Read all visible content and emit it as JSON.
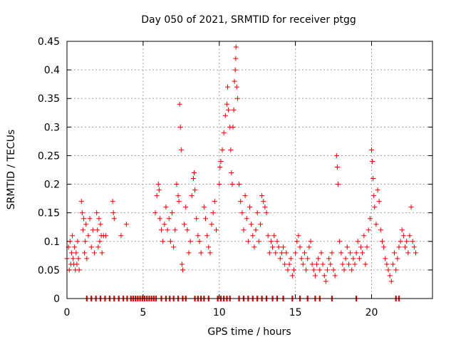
{
  "chart_data": {
    "type": "scatter",
    "title": "Day 050 of 2021, SRMTID for receiver ptgg",
    "xlabel": "GPS time / hours",
    "ylabel": "SRMTID / TECUs",
    "xlim": [
      0,
      24
    ],
    "ylim": [
      0,
      0.45
    ],
    "x_ticks": [
      0,
      5,
      10,
      15,
      20
    ],
    "x_tick_labels": [
      "0",
      "5",
      "10",
      "15",
      "20"
    ],
    "y_ticks": [
      0,
      0.05,
      0.1,
      0.15,
      0.2,
      0.25,
      0.3,
      0.35,
      0.4,
      0.45
    ],
    "y_tick_labels": [
      "0",
      "0.05",
      "0.1",
      "0.15",
      "0.2",
      "0.25",
      "0.3",
      "0.35",
      "0.4",
      "0.45"
    ],
    "grid": true,
    "marker": "+",
    "series_color": "#e00000",
    "series": [
      {
        "name": "SRMTID",
        "points": [
          [
            0.0,
            0.07
          ],
          [
            0.1,
            0.09
          ],
          [
            0.15,
            0.05
          ],
          [
            0.2,
            0.1
          ],
          [
            0.25,
            0.06
          ],
          [
            0.3,
            0.08
          ],
          [
            0.35,
            0.11
          ],
          [
            0.4,
            0.07
          ],
          [
            0.45,
            0.06
          ],
          [
            0.5,
            0.09
          ],
          [
            0.55,
            0.05
          ],
          [
            0.6,
            0.08
          ],
          [
            0.65,
            0.06
          ],
          [
            0.7,
            0.1
          ],
          [
            0.75,
            0.07
          ],
          [
            0.8,
            0.05
          ],
          [
            0.95,
            0.17
          ],
          [
            1.0,
            0.15
          ],
          [
            1.05,
            0.12
          ],
          [
            1.1,
            0.14
          ],
          [
            1.15,
            0.08
          ],
          [
            1.2,
            0.1
          ],
          [
            1.25,
            0.13
          ],
          [
            1.3,
            0.07
          ],
          [
            1.4,
            0.11
          ],
          [
            1.5,
            0.14
          ],
          [
            1.6,
            0.09
          ],
          [
            1.7,
            0.12
          ],
          [
            1.8,
            0.08
          ],
          [
            1.95,
            0.15
          ],
          [
            2.0,
            0.12
          ],
          [
            2.05,
            0.09
          ],
          [
            2.1,
            0.14
          ],
          [
            2.15,
            0.1
          ],
          [
            2.2,
            0.13
          ],
          [
            2.25,
            0.11
          ],
          [
            2.3,
            0.08
          ],
          [
            2.4,
            0.11
          ],
          [
            2.55,
            0.11
          ],
          [
            3.0,
            0.17
          ],
          [
            3.05,
            0.15
          ],
          [
            3.1,
            0.14
          ],
          [
            3.55,
            0.11
          ],
          [
            3.9,
            0.13
          ],
          [
            5.8,
            0.15
          ],
          [
            5.9,
            0.18
          ],
          [
            6.0,
            0.2
          ],
          [
            6.05,
            0.19
          ],
          [
            6.1,
            0.14
          ],
          [
            6.2,
            0.12
          ],
          [
            6.3,
            0.1
          ],
          [
            6.4,
            0.13
          ],
          [
            6.5,
            0.16
          ],
          [
            6.6,
            0.12
          ],
          [
            6.7,
            0.14
          ],
          [
            6.8,
            0.1
          ],
          [
            6.9,
            0.15
          ],
          [
            7.0,
            0.09
          ],
          [
            7.1,
            0.12
          ],
          [
            7.2,
            0.2
          ],
          [
            7.3,
            0.18
          ],
          [
            7.35,
            0.17
          ],
          [
            7.4,
            0.34
          ],
          [
            7.45,
            0.3
          ],
          [
            7.5,
            0.26
          ],
          [
            7.55,
            0.06
          ],
          [
            7.6,
            0.05
          ],
          [
            7.7,
            0.13
          ],
          [
            7.8,
            0.16
          ],
          [
            7.9,
            0.12
          ],
          [
            8.0,
            0.08
          ],
          [
            8.1,
            0.1
          ],
          [
            8.2,
            0.18
          ],
          [
            8.3,
            0.21
          ],
          [
            8.35,
            0.22
          ],
          [
            8.4,
            0.19
          ],
          [
            8.5,
            0.14
          ],
          [
            8.6,
            0.11
          ],
          [
            8.7,
            0.1
          ],
          [
            8.8,
            0.08
          ],
          [
            9.0,
            0.16
          ],
          [
            9.1,
            0.14
          ],
          [
            9.2,
            0.11
          ],
          [
            9.3,
            0.09
          ],
          [
            9.4,
            0.08
          ],
          [
            9.5,
            0.13
          ],
          [
            9.6,
            0.15
          ],
          [
            9.7,
            0.17
          ],
          [
            9.8,
            0.12
          ],
          [
            10.0,
            0.2
          ],
          [
            10.05,
            0.23
          ],
          [
            10.1,
            0.24
          ],
          [
            10.2,
            0.26
          ],
          [
            10.3,
            0.29
          ],
          [
            10.4,
            0.32
          ],
          [
            10.5,
            0.34
          ],
          [
            10.55,
            0.37
          ],
          [
            10.6,
            0.33
          ],
          [
            10.7,
            0.3
          ],
          [
            10.75,
            0.26
          ],
          [
            10.8,
            0.22
          ],
          [
            10.85,
            0.2
          ],
          [
            10.9,
            0.3
          ],
          [
            10.95,
            0.33
          ],
          [
            11.0,
            0.38
          ],
          [
            11.05,
            0.4
          ],
          [
            11.08,
            0.42
          ],
          [
            11.1,
            0.44
          ],
          [
            11.15,
            0.37
          ],
          [
            11.2,
            0.35
          ],
          [
            11.3,
            0.2
          ],
          [
            11.4,
            0.17
          ],
          [
            11.5,
            0.15
          ],
          [
            11.6,
            0.12
          ],
          [
            11.7,
            0.18
          ],
          [
            11.8,
            0.14
          ],
          [
            11.9,
            0.1
          ],
          [
            12.0,
            0.16
          ],
          [
            12.1,
            0.13
          ],
          [
            12.2,
            0.11
          ],
          [
            12.3,
            0.09
          ],
          [
            12.4,
            0.12
          ],
          [
            12.5,
            0.15
          ],
          [
            12.6,
            0.1
          ],
          [
            12.7,
            0.13
          ],
          [
            12.8,
            0.18
          ],
          [
            12.9,
            0.17
          ],
          [
            13.0,
            0.16
          ],
          [
            13.1,
            0.15
          ],
          [
            13.2,
            0.11
          ],
          [
            13.3,
            0.08
          ],
          [
            13.4,
            0.1
          ],
          [
            13.5,
            0.09
          ],
          [
            13.6,
            0.11
          ],
          [
            13.7,
            0.08
          ],
          [
            13.8,
            0.1
          ],
          [
            13.9,
            0.09
          ],
          [
            14.0,
            0.07
          ],
          [
            14.1,
            0.08
          ],
          [
            14.2,
            0.09
          ],
          [
            14.3,
            0.06
          ],
          [
            14.4,
            0.08
          ],
          [
            14.5,
            0.05
          ],
          [
            14.6,
            0.06
          ],
          [
            14.7,
            0.07
          ],
          [
            14.8,
            0.04
          ],
          [
            14.9,
            0.05
          ],
          [
            15.0,
            0.08
          ],
          [
            15.1,
            0.1
          ],
          [
            15.2,
            0.11
          ],
          [
            15.3,
            0.09
          ],
          [
            15.4,
            0.07
          ],
          [
            15.5,
            0.06
          ],
          [
            15.6,
            0.08
          ],
          [
            15.7,
            0.05
          ],
          [
            15.8,
            0.07
          ],
          [
            15.9,
            0.09
          ],
          [
            16.0,
            0.1
          ],
          [
            16.1,
            0.06
          ],
          [
            16.2,
            0.05
          ],
          [
            16.3,
            0.04
          ],
          [
            16.4,
            0.06
          ],
          [
            16.5,
            0.07
          ],
          [
            16.6,
            0.05
          ],
          [
            16.7,
            0.08
          ],
          [
            16.8,
            0.06
          ],
          [
            16.9,
            0.04
          ],
          [
            17.0,
            0.03
          ],
          [
            17.1,
            0.05
          ],
          [
            17.2,
            0.07
          ],
          [
            17.3,
            0.06
          ],
          [
            17.4,
            0.08
          ],
          [
            17.5,
            0.05
          ],
          [
            17.6,
            0.04
          ],
          [
            17.7,
            0.25
          ],
          [
            17.75,
            0.23
          ],
          [
            17.8,
            0.2
          ],
          [
            17.9,
            0.1
          ],
          [
            18.0,
            0.08
          ],
          [
            18.1,
            0.06
          ],
          [
            18.2,
            0.05
          ],
          [
            18.3,
            0.07
          ],
          [
            18.4,
            0.09
          ],
          [
            18.5,
            0.06
          ],
          [
            18.6,
            0.08
          ],
          [
            18.7,
            0.05
          ],
          [
            18.8,
            0.07
          ],
          [
            18.9,
            0.06
          ],
          [
            19.0,
            0.08
          ],
          [
            19.1,
            0.1
          ],
          [
            19.2,
            0.07
          ],
          [
            19.3,
            0.09
          ],
          [
            19.4,
            0.08
          ],
          [
            19.5,
            0.11
          ],
          [
            19.6,
            0.06
          ],
          [
            19.7,
            0.09
          ],
          [
            19.8,
            0.12
          ],
          [
            19.9,
            0.14
          ],
          [
            20.0,
            0.26
          ],
          [
            20.05,
            0.24
          ],
          [
            20.1,
            0.21
          ],
          [
            20.15,
            0.18
          ],
          [
            20.2,
            0.16
          ],
          [
            20.3,
            0.13
          ],
          [
            20.4,
            0.19
          ],
          [
            20.5,
            0.17
          ],
          [
            20.6,
            0.12
          ],
          [
            20.7,
            0.1
          ],
          [
            20.8,
            0.09
          ],
          [
            20.9,
            0.07
          ],
          [
            21.0,
            0.06
          ],
          [
            21.1,
            0.05
          ],
          [
            21.2,
            0.04
          ],
          [
            21.3,
            0.03
          ],
          [
            21.4,
            0.06
          ],
          [
            21.5,
            0.08
          ],
          [
            21.6,
            0.05
          ],
          [
            21.7,
            0.07
          ],
          [
            21.8,
            0.09
          ],
          [
            21.9,
            0.1
          ],
          [
            22.0,
            0.12
          ],
          [
            22.1,
            0.11
          ],
          [
            22.2,
            0.09
          ],
          [
            22.3,
            0.1
          ],
          [
            22.4,
            0.08
          ],
          [
            22.5,
            0.11
          ],
          [
            22.6,
            0.16
          ],
          [
            22.7,
            0.1
          ],
          [
            22.8,
            0.09
          ],
          [
            22.9,
            0.08
          ]
        ]
      }
    ],
    "zero_markers": [
      1.3,
      1.6,
      1.9,
      2.2,
      2.5,
      2.8,
      3.1,
      3.4,
      3.7,
      3.95,
      4.2,
      4.35,
      4.5,
      4.65,
      4.8,
      4.95,
      5.1,
      5.25,
      5.4,
      5.55,
      5.7,
      5.85,
      6.2,
      6.5,
      6.75,
      7.0,
      7.3,
      7.6,
      7.8,
      8.4,
      8.6,
      8.8,
      9.0,
      9.3,
      9.9,
      10.1,
      10.3,
      10.5,
      10.7,
      11.3,
      11.6,
      11.9,
      12.2,
      12.5,
      12.8,
      13.1,
      13.5,
      13.8,
      14.2,
      14.8,
      15.3,
      15.8,
      16.3,
      16.6,
      17.4,
      19.0,
      21.6,
      21.8
    ]
  }
}
